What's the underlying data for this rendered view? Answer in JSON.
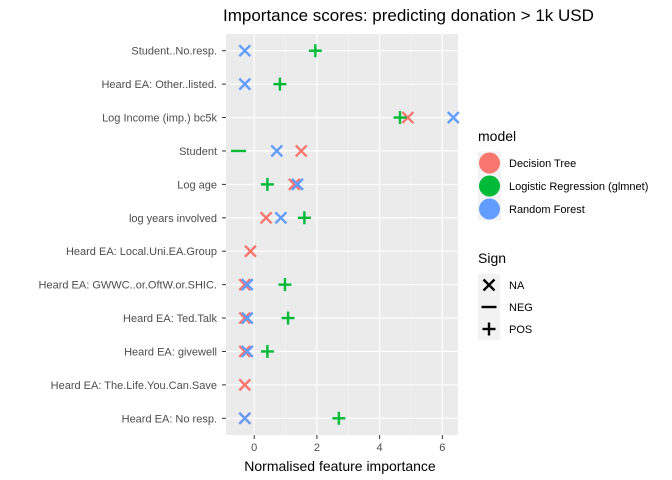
{
  "chart_data": {
    "type": "scatter",
    "title": "Importance scores: predicting donation > 1k USD",
    "xlabel": "Normalised feature importance",
    "ylabel": "",
    "xlim": [
      -0.9,
      6.5
    ],
    "xticks": [
      0,
      2,
      4,
      6
    ],
    "grid": true,
    "legend_placement": "right",
    "categories": [
      "Student..No.resp.",
      "Heard EA: Other..listed.",
      "Log Income (imp.) bc5k",
      "Student",
      "Log age",
      "log years involved",
      "Heard EA: Local.Uni.EA.Group",
      "Heard EA: GWWC..or.OftW.or.SHIC.",
      "Heard EA: Ted.Talk",
      "Heard EA: givewell",
      "Heard EA: The.Life.You.Can.Save",
      "Heard EA: No resp."
    ],
    "series": [
      {
        "name": "Decision Tree",
        "color": "#F8766D",
        "points": [
          {
            "category": "Log Income (imp.) bc5k",
            "x": 4.9,
            "sign": "NA"
          },
          {
            "category": "Student",
            "x": 1.5,
            "sign": "NA"
          },
          {
            "category": "Log age",
            "x": 1.28,
            "sign": "NA"
          },
          {
            "category": "log years involved",
            "x": 0.38,
            "sign": "NA"
          },
          {
            "category": "Heard EA: Local.Uni.EA.Group",
            "x": -0.12,
            "sign": "NA"
          },
          {
            "category": "Heard EA: GWWC..or.OftW.or.SHIC.",
            "x": -0.3,
            "sign": "NA"
          },
          {
            "category": "Heard EA: Ted.Talk",
            "x": -0.3,
            "sign": "NA"
          },
          {
            "category": "Heard EA: givewell",
            "x": -0.3,
            "sign": "NA"
          },
          {
            "category": "Heard EA: The.Life.You.Can.Save",
            "x": -0.3,
            "sign": "NA"
          },
          {
            "category": "Heard EA: No resp.",
            "x": -0.3,
            "sign": "NA"
          }
        ]
      },
      {
        "name": "Logistic Regression (glmnet)",
        "color": "#00BA38",
        "points": [
          {
            "category": "Student..No.resp.",
            "x": 1.95,
            "sign": "POS"
          },
          {
            "category": "Heard EA: Other..listed.",
            "x": 0.82,
            "sign": "POS"
          },
          {
            "category": "Log Income (imp.) bc5k",
            "x": 4.65,
            "sign": "POS"
          },
          {
            "category": "Student",
            "x": -0.5,
            "sign": "NEG"
          },
          {
            "category": "Log age",
            "x": 0.42,
            "sign": "POS"
          },
          {
            "category": "log years involved",
            "x": 1.6,
            "sign": "POS"
          },
          {
            "category": "Heard EA: GWWC..or.OftW.or.SHIC.",
            "x": 0.98,
            "sign": "POS"
          },
          {
            "category": "Heard EA: Ted.Talk",
            "x": 1.08,
            "sign": "POS"
          },
          {
            "category": "Heard EA: givewell",
            "x": 0.42,
            "sign": "POS"
          },
          {
            "category": "Heard EA: No resp.",
            "x": 2.7,
            "sign": "POS"
          }
        ]
      },
      {
        "name": "Random Forest",
        "color": "#619CFF",
        "points": [
          {
            "category": "Student..No.resp.",
            "x": -0.3,
            "sign": "NA"
          },
          {
            "category": "Heard EA: Other..listed.",
            "x": -0.3,
            "sign": "NA"
          },
          {
            "category": "Log Income (imp.) bc5k",
            "x": 6.35,
            "sign": "NA"
          },
          {
            "category": "Student",
            "x": 0.72,
            "sign": "NA"
          },
          {
            "category": "Log age",
            "x": 1.38,
            "sign": "NA"
          },
          {
            "category": "log years involved",
            "x": 0.85,
            "sign": "NA"
          },
          {
            "category": "Heard EA: GWWC..or.OftW.or.SHIC.",
            "x": -0.22,
            "sign": "NA"
          },
          {
            "category": "Heard EA: Ted.Talk",
            "x": -0.22,
            "sign": "NA"
          },
          {
            "category": "Heard EA: givewell",
            "x": -0.22,
            "sign": "NA"
          },
          {
            "category": "Heard EA: No resp.",
            "x": -0.3,
            "sign": "NA"
          }
        ]
      }
    ],
    "legend": {
      "model_title": "model",
      "sign_title": "Sign",
      "sign_items": [
        {
          "label": "NA",
          "symbol": "x"
        },
        {
          "label": "NEG",
          "symbol": "minus"
        },
        {
          "label": "POS",
          "symbol": "plus"
        }
      ]
    }
  }
}
